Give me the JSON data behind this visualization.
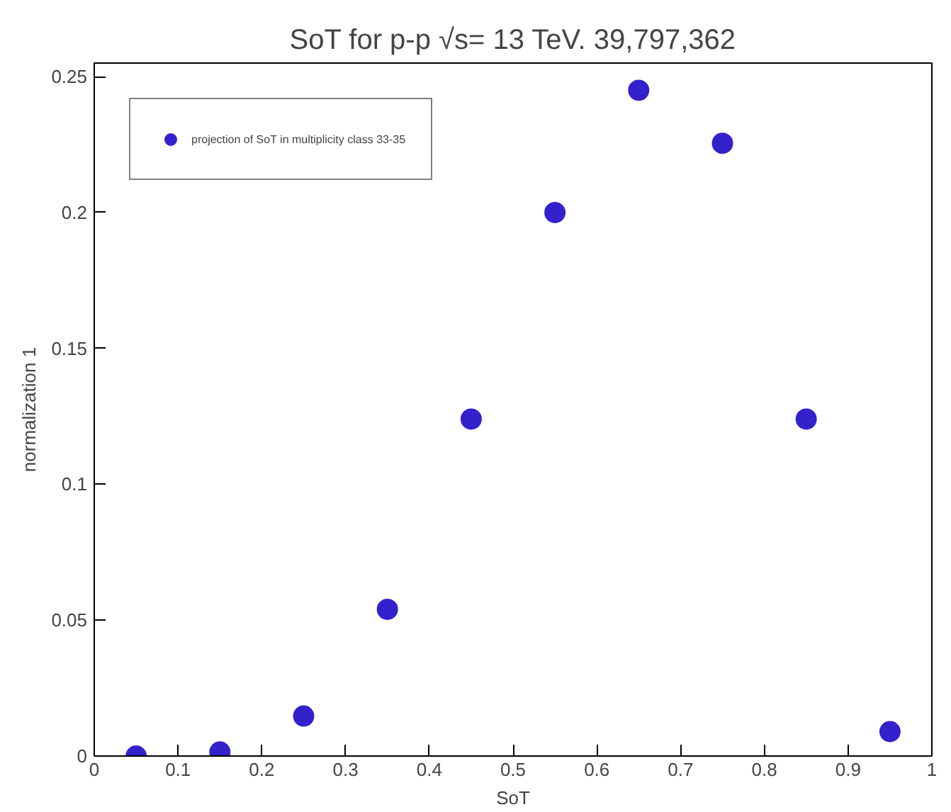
{
  "chart_data": {
    "type": "scatter",
    "title": "SoT for p-p √s= 13 TeV. 39,797,362",
    "xlabel": "SoT",
    "ylabel": "normalization 1",
    "x": [
      0.05,
      0.15,
      0.25,
      0.35,
      0.45,
      0.55,
      0.65,
      0.75,
      0.85,
      0.95
    ],
    "series": [
      {
        "name": "projection of SoT in multiplicity class 33-35",
        "color": "#3322cc",
        "values": [
          0.0,
          0.0015,
          0.0147,
          0.054,
          0.124,
          0.2,
          0.245,
          0.2255,
          0.124,
          0.009
        ]
      }
    ],
    "xlim": [
      0,
      1
    ],
    "ylim": [
      0,
      0.255
    ],
    "xticks": [
      0,
      0.1,
      0.2,
      0.3,
      0.4,
      0.5,
      0.6,
      0.7,
      0.8,
      0.9,
      1
    ],
    "yticks": [
      0,
      0.05,
      0.1,
      0.15,
      0.2,
      0.25
    ],
    "marker": "circle",
    "grid": false,
    "legend": "top left"
  }
}
